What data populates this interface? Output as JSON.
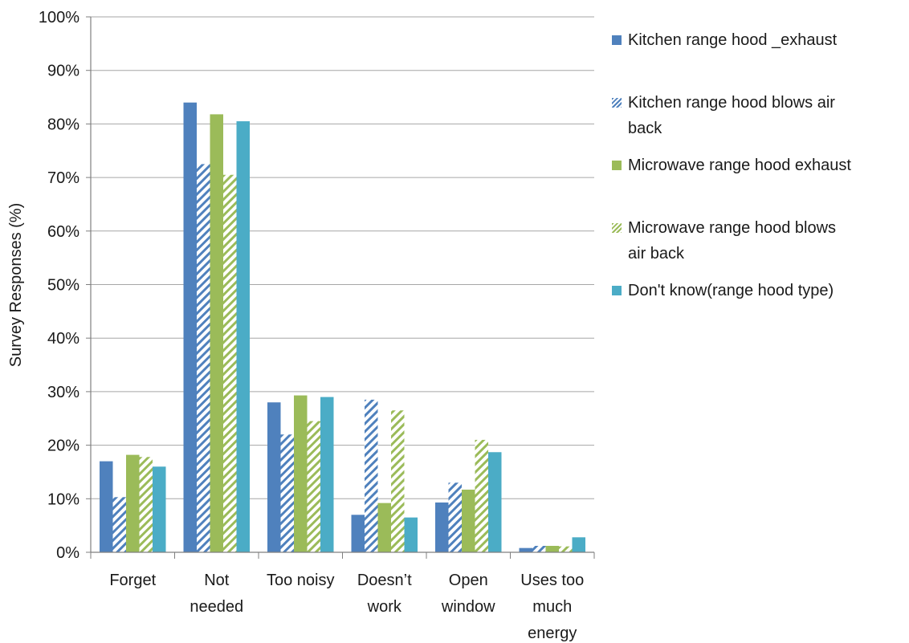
{
  "chart_data": {
    "type": "bar",
    "title": "",
    "xlabel": "",
    "ylabel": "Survey Responses (%)",
    "ylim": [
      0,
      100
    ],
    "yticks": [
      "0%",
      "10%",
      "20%",
      "30%",
      "40%",
      "50%",
      "60%",
      "70%",
      "80%",
      "90%",
      "100%"
    ],
    "grid": true,
    "legend_position": "right",
    "categories": [
      [
        "Forget"
      ],
      [
        "Not",
        "needed"
      ],
      [
        "Too noisy"
      ],
      [
        "Doesn’t",
        "work"
      ],
      [
        "Open",
        "window"
      ],
      [
        "Uses too",
        "much",
        "energy"
      ]
    ],
    "series": [
      {
        "name": "Kitchen range hood _exhaust",
        "legend_lines": [
          "Kitchen range hood _exhaust"
        ],
        "color": "#4f81bd",
        "pattern": "solid",
        "values": [
          17,
          84,
          28,
          7,
          9.3,
          0.8
        ]
      },
      {
        "name": "Kitchen range hood blows air back",
        "legend_lines": [
          "Kitchen range hood blows air",
          "back"
        ],
        "color": "#4f81bd",
        "pattern": "hatch",
        "values": [
          10.3,
          72.5,
          22,
          28.5,
          13,
          1.2
        ]
      },
      {
        "name": "Microwave range hood exhaust",
        "legend_lines": [
          "Microwave range hood exhaust"
        ],
        "color": "#9bbb59",
        "pattern": "solid",
        "values": [
          18.2,
          81.8,
          29.3,
          9.2,
          11.7,
          1.2
        ]
      },
      {
        "name": "Microwave range hood blows air back",
        "legend_lines": [
          "Microwave range hood blows",
          "air back"
        ],
        "color": "#9bbb59",
        "pattern": "hatch",
        "values": [
          17.8,
          70.5,
          24.5,
          26.5,
          21,
          1.1
        ]
      },
      {
        "name": "Don't know(range hood type)",
        "legend_lines": [
          "Don't know(range hood type)"
        ],
        "color": "#4bacc6",
        "pattern": "solid",
        "values": [
          16,
          80.5,
          29,
          6.5,
          18.7,
          2.8
        ]
      }
    ]
  }
}
